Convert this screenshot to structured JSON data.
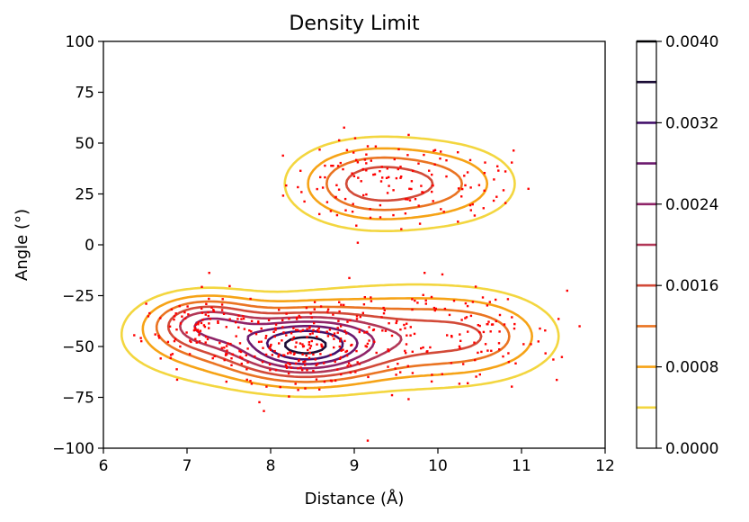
{
  "chart_data": {
    "type": "contour",
    "title": "Density Limit",
    "xlabel": "Distance (Å)",
    "ylabel": "Angle (°)",
    "xlim": [
      6,
      12
    ],
    "ylim": [
      -100,
      100
    ],
    "xticks": [
      "6",
      "7",
      "8",
      "9",
      "10",
      "11",
      "12"
    ],
    "yticks": [
      "100",
      "75",
      "50",
      "25",
      "0",
      "−25",
      "−50",
      "−75",
      "−100"
    ],
    "grid": false,
    "colorbar": {
      "range": [
        0,
        0.004
      ],
      "ticks": [
        "0.0000",
        "0.0008",
        "0.0016",
        "0.0024",
        "0.0032",
        "0.0040"
      ],
      "levels": [
        0.0004,
        0.0008,
        0.0012,
        0.0016,
        0.002,
        0.0024,
        0.0028,
        0.0032,
        0.0036,
        0.004
      ],
      "colors": [
        "#f3d63f",
        "#f6a316",
        "#ea7422",
        "#d24a38",
        "#b23757",
        "#8f2468",
        "#6b196e",
        "#43116b",
        "#1b0d36",
        "#000004"
      ]
    },
    "scatter_color": "#ff0000",
    "density_model": {
      "components": [
        {
          "mx": 9.2,
          "my": 30,
          "sx": 0.6,
          "sy": 13,
          "w": 0.9
        },
        {
          "mx": 10.2,
          "my": 30,
          "sx": 0.55,
          "sy": 13,
          "w": 0.45
        },
        {
          "mx": 7.2,
          "my": -38,
          "sx": 0.45,
          "sy": 9,
          "w": 0.9
        },
        {
          "mx": 8.4,
          "my": -50,
          "sx": 0.55,
          "sy": 11,
          "w": 1.3
        },
        {
          "mx": 7.6,
          "my": -50,
          "sx": 0.9,
          "sy": 13,
          "w": 0.5
        },
        {
          "mx": 9.6,
          "my": -45,
          "sx": 0.9,
          "sy": 15,
          "w": 0.8
        },
        {
          "mx": 10.6,
          "my": -45,
          "sx": 0.55,
          "sy": 13,
          "w": 0.35
        }
      ]
    }
  }
}
